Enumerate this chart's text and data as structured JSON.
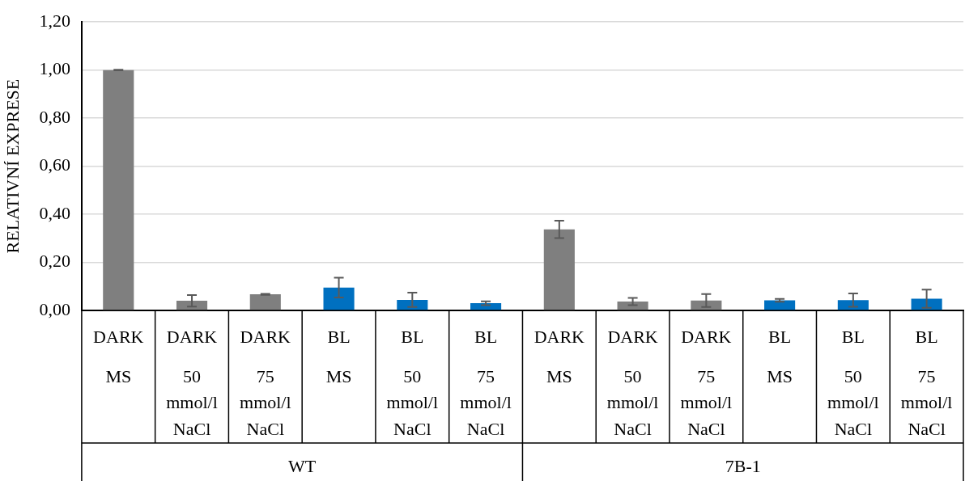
{
  "chart_data": {
    "type": "bar",
    "ylabel": "RELATIVNÍ EXPRESE",
    "categories": [
      "DARK\nMS",
      "DARK\n50\nmmol/l\nNaCl",
      "DARK\n75\nmmol/l\nNaCl",
      "BL\nMS",
      "BL\n50\nmmol/l\nNaCl",
      "BL\n75\nmmol/l\nNaCl",
      "DARK\nMS",
      "DARK\n50\nmmol/l\nNaCl",
      "DARK\n75\nmmol/l\nNaCl",
      "BL\nMS",
      "BL\n50\nmmol/l\nNaCl",
      "BL\n75\nmmol/l\nNaCl"
    ],
    "values": [
      1.0,
      0.04,
      0.067,
      0.095,
      0.044,
      0.03,
      0.337,
      0.037,
      0.041,
      0.042,
      0.043,
      0.049
    ],
    "errors": [
      0.001,
      0.024,
      0.002,
      0.041,
      0.03,
      0.008,
      0.036,
      0.015,
      0.027,
      0.006,
      0.028,
      0.038
    ],
    "colors": [
      "#7f7f7f",
      "#7f7f7f",
      "#7f7f7f",
      "#0070c0",
      "#0070c0",
      "#0070c0",
      "#7f7f7f",
      "#7f7f7f",
      "#7f7f7f",
      "#0070c0",
      "#0070c0",
      "#0070c0"
    ],
    "annotations": [
      "WT",
      "7B-1"
    ],
    "ylim": [
      0,
      1.2
    ],
    "yticks": [
      {
        "value": 0,
        "label": "0,00"
      },
      {
        "value": 0.2,
        "label": "0,20"
      },
      {
        "value": 0.4,
        "label": "0,40"
      },
      {
        "value": 0.6,
        "label": "0,60"
      },
      {
        "value": 0.8,
        "label": "0,80"
      },
      {
        "value": 1.0,
        "label": "1,00"
      },
      {
        "value": 1.2,
        "label": "1,20"
      }
    ],
    "grid": "y"
  }
}
